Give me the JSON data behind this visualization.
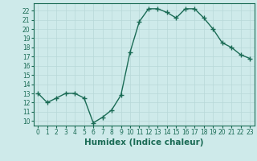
{
  "x": [
    0,
    1,
    2,
    3,
    4,
    5,
    6,
    7,
    8,
    9,
    10,
    11,
    12,
    13,
    14,
    15,
    16,
    17,
    18,
    19,
    20,
    21,
    22,
    23
  ],
  "y": [
    13,
    12,
    12.5,
    13,
    13,
    12.5,
    9.8,
    10.4,
    11.2,
    12.8,
    17.5,
    20.8,
    22.2,
    22.2,
    21.8,
    21.2,
    22.2,
    22.2,
    21.2,
    20,
    18.5,
    18,
    17.2,
    16.8
  ],
  "line_color": "#1a6b55",
  "marker": "+",
  "marker_size": 4,
  "line_width": 1.0,
  "background_color": "#ceeaea",
  "grid_color": "#b8d8d8",
  "xlabel": "Humidex (Indice chaleur)",
  "xlabel_fontsize": 7.5,
  "xlim": [
    -0.5,
    23.5
  ],
  "ylim": [
    9.5,
    22.8
  ],
  "yticks": [
    10,
    11,
    12,
    13,
    14,
    15,
    16,
    17,
    18,
    19,
    20,
    21,
    22
  ],
  "xticks": [
    0,
    1,
    2,
    3,
    4,
    5,
    6,
    7,
    8,
    9,
    10,
    11,
    12,
    13,
    14,
    15,
    16,
    17,
    18,
    19,
    20,
    21,
    22,
    23
  ],
  "xtick_labels": [
    "0",
    "1",
    "2",
    "3",
    "4",
    "5",
    "6",
    "7",
    "8",
    "9",
    "10",
    "11",
    "12",
    "13",
    "14",
    "15",
    "16",
    "17",
    "18",
    "19",
    "20",
    "21",
    "22",
    "23"
  ],
  "tick_fontsize": 5.5,
  "tick_color": "#1a6b55"
}
